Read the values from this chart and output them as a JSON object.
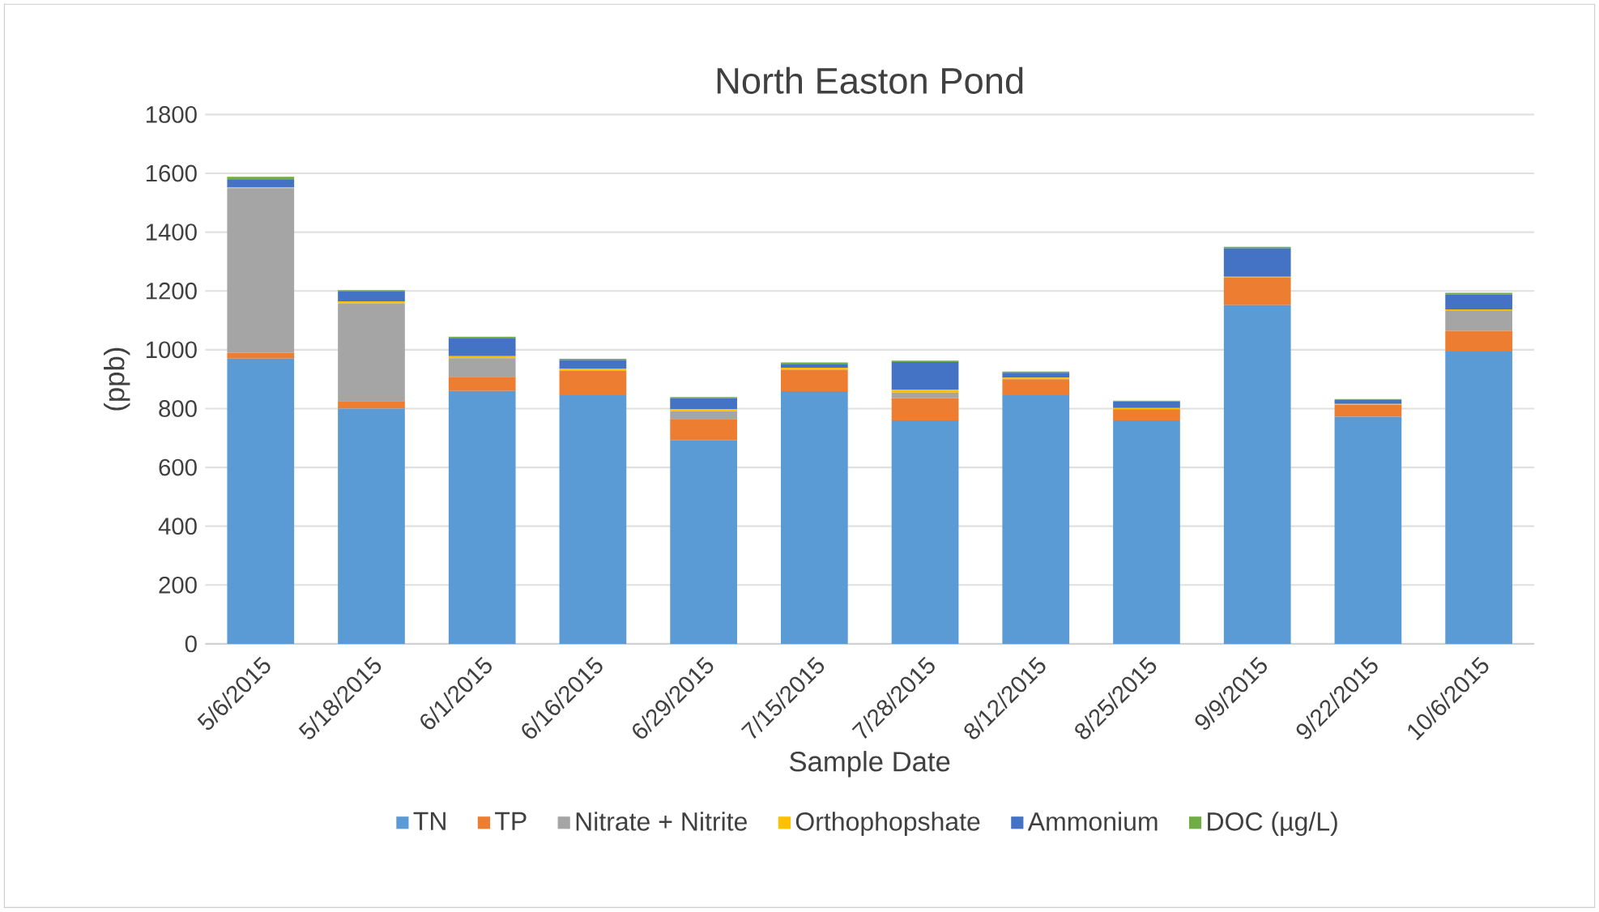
{
  "chart_data": {
    "type": "bar",
    "stacked": true,
    "title": "North Easton Pond",
    "xlabel": "Sample Date",
    "ylabel": "(ppb)",
    "categories": [
      "5/6/2015",
      "5/18/2015",
      "6/1/2015",
      "6/16/2015",
      "6/29/2015",
      "7/15/2015",
      "7/28/2015",
      "8/12/2015",
      "8/25/2015",
      "9/9/2015",
      "9/22/2015",
      "10/6/2015"
    ],
    "series": [
      {
        "name": "TN",
        "color": "#5b9bd5",
        "values": [
          970,
          800,
          860,
          845,
          692,
          859,
          760,
          845,
          760,
          1152,
          772,
          994
        ]
      },
      {
        "name": "TP",
        "color": "#ed7d31",
        "values": [
          20,
          25,
          48,
          83,
          73,
          73,
          76,
          55,
          38,
          94,
          41,
          70
        ]
      },
      {
        "name": "Nitrate + Nitrite",
        "color": "#a5a5a5",
        "values": [
          560,
          333,
          63,
          null,
          26,
          null,
          18,
          null,
          null,
          null,
          null,
          70
        ]
      },
      {
        "name": "Orthophopshate",
        "color": "#ffc000",
        "values": [
          2,
          7,
          7,
          8,
          7,
          7,
          10,
          5,
          4,
          2,
          3,
          3
        ]
      },
      {
        "name": "Ammonium",
        "color": "#4472c4",
        "values": [
          28,
          33,
          62,
          29,
          38,
          13,
          94,
          17,
          22,
          97,
          13,
          51
        ]
      },
      {
        "name": "DOC (µg/L)",
        "color": "#70ad47",
        "values": [
          8,
          5,
          4,
          4,
          3,
          5,
          5,
          4,
          3,
          5,
          3,
          6
        ]
      }
    ],
    "ylim": [
      0,
      1800
    ],
    "yticks": [
      0,
      200,
      400,
      600,
      800,
      1000,
      1200,
      1400,
      1600,
      1800
    ],
    "grid": "y",
    "legend": "bottom"
  }
}
